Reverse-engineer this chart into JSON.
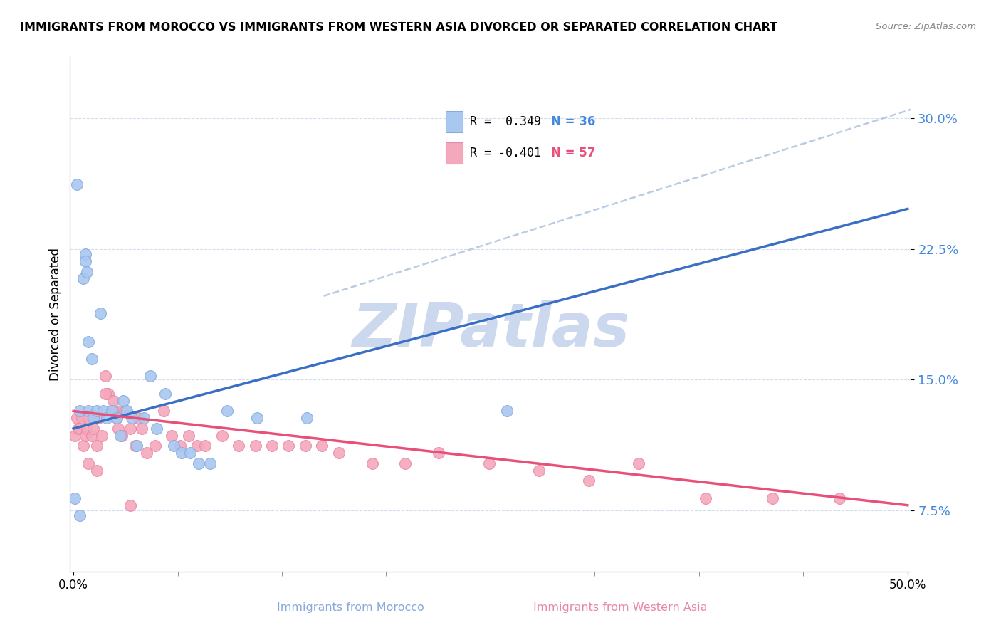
{
  "title": "IMMIGRANTS FROM MOROCCO VS IMMIGRANTS FROM WESTERN ASIA DIVORCED OR SEPARATED CORRELATION CHART",
  "source": "Source: ZipAtlas.com",
  "xlabel_morocco": "Immigrants from Morocco",
  "xlabel_western_asia": "Immigrants from Western Asia",
  "ylabel": "Divorced or Separated",
  "xlim": [
    -0.002,
    0.502
  ],
  "ylim": [
    0.04,
    0.335
  ],
  "yticks": [
    0.075,
    0.15,
    0.225,
    0.3
  ],
  "ytick_labels": [
    "7.5%",
    "15.0%",
    "22.5%",
    "30.0%"
  ],
  "xticks": [
    0.0,
    0.5
  ],
  "xtick_labels": [
    "0.0%",
    "50.0%"
  ],
  "xticks_minor": [
    0.0625,
    0.125,
    0.1875,
    0.25,
    0.3125,
    0.375,
    0.4375
  ],
  "morocco_color": "#a8c8f0",
  "western_asia_color": "#f4a8bc",
  "morocco_edge": "#88aadd",
  "western_asia_edge": "#e888a8",
  "blue_line_color": "#3a6fc4",
  "pink_line_color": "#e8507a",
  "dashed_line_color": "#b8cce4",
  "legend_R_morocco": "R =  0.349",
  "legend_N_morocco": "N = 36",
  "legend_R_western": "R = -0.401",
  "legend_N_western": "N = 57",
  "watermark": "ZIPatlas",
  "watermark_color": "#ccd8ee",
  "morocco_x": [
    0.001,
    0.004,
    0.006,
    0.007,
    0.007,
    0.008,
    0.009,
    0.009,
    0.011,
    0.012,
    0.014,
    0.016,
    0.018,
    0.02,
    0.023,
    0.026,
    0.028,
    0.03,
    0.032,
    0.035,
    0.038,
    0.042,
    0.046,
    0.05,
    0.055,
    0.06,
    0.065,
    0.07,
    0.075,
    0.082,
    0.092,
    0.11,
    0.14,
    0.26,
    0.004,
    0.002
  ],
  "morocco_y": [
    0.082,
    0.132,
    0.208,
    0.222,
    0.218,
    0.212,
    0.172,
    0.132,
    0.162,
    0.128,
    0.132,
    0.188,
    0.132,
    0.128,
    0.132,
    0.128,
    0.118,
    0.138,
    0.132,
    0.128,
    0.112,
    0.128,
    0.152,
    0.122,
    0.142,
    0.112,
    0.108,
    0.108,
    0.102,
    0.102,
    0.132,
    0.128,
    0.128,
    0.132,
    0.072,
    0.262
  ],
  "western_asia_x": [
    0.001,
    0.002,
    0.003,
    0.004,
    0.005,
    0.006,
    0.007,
    0.008,
    0.009,
    0.011,
    0.012,
    0.014,
    0.015,
    0.017,
    0.019,
    0.021,
    0.024,
    0.026,
    0.027,
    0.029,
    0.031,
    0.034,
    0.037,
    0.039,
    0.041,
    0.044,
    0.049,
    0.054,
    0.059,
    0.064,
    0.069,
    0.074,
    0.079,
    0.089,
    0.099,
    0.109,
    0.119,
    0.129,
    0.139,
    0.149,
    0.159,
    0.179,
    0.199,
    0.219,
    0.249,
    0.279,
    0.309,
    0.339,
    0.379,
    0.419,
    0.459,
    0.009,
    0.014,
    0.019,
    0.024,
    0.029,
    0.034
  ],
  "western_asia_y": [
    0.118,
    0.128,
    0.122,
    0.122,
    0.128,
    0.112,
    0.118,
    0.122,
    0.128,
    0.118,
    0.122,
    0.112,
    0.128,
    0.118,
    0.152,
    0.142,
    0.138,
    0.128,
    0.122,
    0.132,
    0.132,
    0.122,
    0.112,
    0.128,
    0.122,
    0.108,
    0.112,
    0.132,
    0.118,
    0.112,
    0.118,
    0.112,
    0.112,
    0.118,
    0.112,
    0.112,
    0.112,
    0.112,
    0.112,
    0.112,
    0.108,
    0.102,
    0.102,
    0.108,
    0.102,
    0.098,
    0.092,
    0.102,
    0.082,
    0.082,
    0.082,
    0.102,
    0.098,
    0.142,
    0.132,
    0.118,
    0.078
  ],
  "morocco_trend_x": [
    0.0,
    0.5
  ],
  "morocco_trend_y": [
    0.122,
    0.248
  ],
  "western_asia_trend_x": [
    0.0,
    0.5
  ],
  "western_asia_trend_y": [
    0.132,
    0.078
  ],
  "dashed_trend_x": [
    0.15,
    0.502
  ],
  "dashed_trend_y": [
    0.198,
    0.305
  ]
}
